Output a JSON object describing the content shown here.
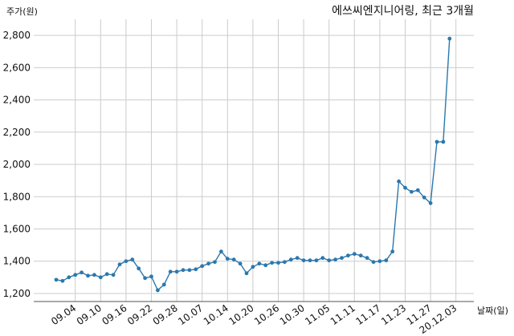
{
  "chart_data": {
    "type": "line",
    "title": "에쓰씨엔지니어링, 최근 3개월",
    "ylabel": "주가(원)",
    "xlabel": "날짜(일)",
    "ylim": [
      1150,
      2900
    ],
    "yticks": [
      1200,
      1400,
      1600,
      1800,
      2000,
      2200,
      2400,
      2600,
      2800
    ],
    "ytick_labels": [
      "1,200",
      "1,400",
      "1,600",
      "1,800",
      "2,000",
      "2,200",
      "2,400",
      "2,600",
      "2,800"
    ],
    "x_tick_labels": [
      "09.04",
      "09.10",
      "09.16",
      "09.22",
      "09.28",
      "10.07",
      "10.14",
      "10.20",
      "10.26",
      "10.30",
      "11.05",
      "11.11",
      "11.17",
      "11.23",
      "11.27",
      "20.12.03"
    ],
    "x_tick_index": [
      3,
      7,
      11,
      15,
      19,
      23,
      27,
      31,
      35,
      39,
      43,
      47,
      51,
      55,
      59,
      63
    ],
    "grid": true,
    "color": "#2b78ad",
    "series": [
      {
        "values": [
          1285,
          1278,
          1300,
          1315,
          1330,
          1310,
          1315,
          1300,
          1320,
          1315,
          1380,
          1400,
          1410,
          1355,
          1295,
          1305,
          1220,
          1255,
          1335,
          1335,
          1345,
          1345,
          1350,
          1370,
          1385,
          1395,
          1460,
          1415,
          1410,
          1385,
          1325,
          1365,
          1385,
          1375,
          1390,
          1390,
          1395,
          1410,
          1420,
          1405,
          1405,
          1405,
          1420,
          1405,
          1410,
          1420,
          1435,
          1445,
          1435,
          1420,
          1395,
          1400,
          1405,
          1460,
          1895,
          1855,
          1830,
          1840,
          1795,
          1760,
          2140,
          2140,
          2780
        ]
      }
    ]
  }
}
